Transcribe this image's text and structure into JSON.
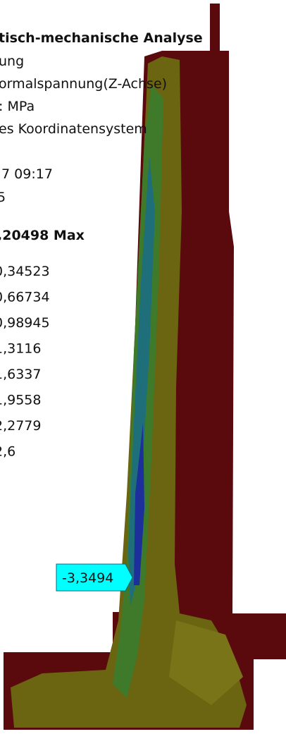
{
  "header": {
    "lines": [
      "tisch-mechanische Analyse",
      "ung",
      "ormalspannung(Z-Achse)",
      ": MPa",
      "es Koordinatensystem",
      ".7 09:17",
      "5"
    ]
  },
  "legend": {
    "max_label": ",20498 Max",
    "values": [
      "0,34523",
      "0,66734",
      "0,98945",
      "1,3116",
      "1,6337",
      "1,9558",
      "2,2779",
      "2,6"
    ]
  },
  "probe": {
    "label": "-3,3494"
  }
}
